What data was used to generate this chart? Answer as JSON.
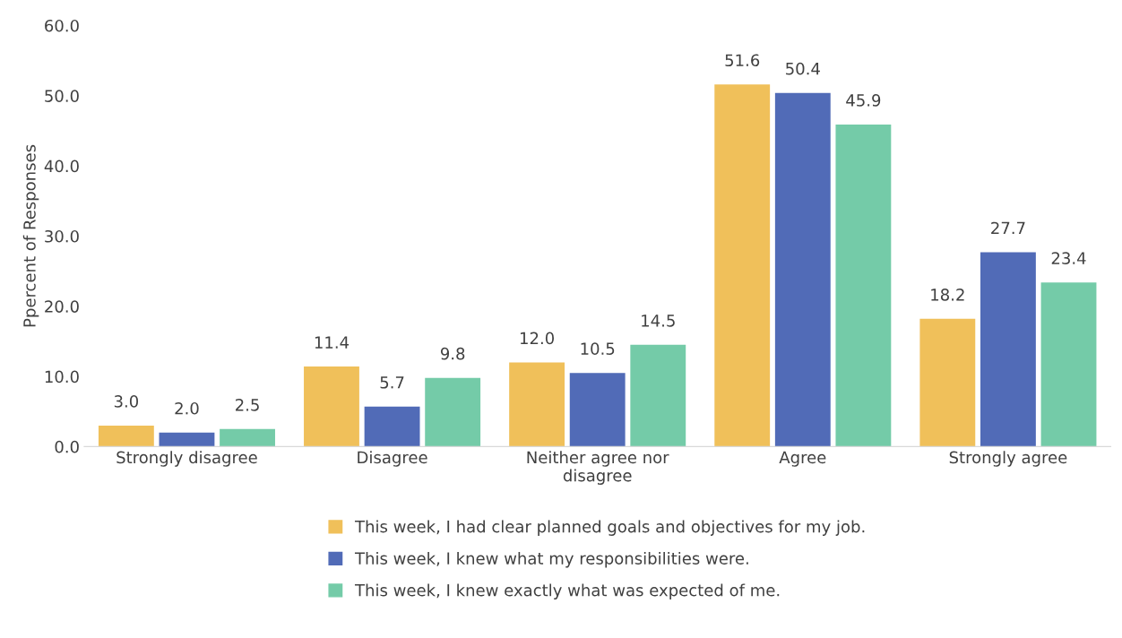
{
  "chart_data": {
    "type": "bar",
    "ylabel": "Ppercent of Responses",
    "categories": [
      "Strongly disagree",
      "Disagree",
      "Neither agree nor\ndisagree",
      "Agree",
      "Strongly agree"
    ],
    "series": [
      {
        "name": "This week, I had clear planned goals and objectives for my job.",
        "color": "#f0c05a",
        "values": [
          3.0,
          11.4,
          12.0,
          51.6,
          18.2
        ],
        "value_labels": [
          "3.0",
          "11.4",
          "12.0",
          "51.6",
          "18.2"
        ]
      },
      {
        "name": "This week, I knew what my responsibilities were.",
        "color": "#516bb7",
        "values": [
          2.0,
          5.7,
          10.5,
          50.4,
          27.7
        ],
        "value_labels": [
          "2.0",
          "5.7",
          "10.5",
          "50.4",
          "27.7"
        ]
      },
      {
        "name": "This week, I knew exactly what was expected of me.",
        "color": "#74cba8",
        "values": [
          2.5,
          9.8,
          14.5,
          45.9,
          23.4
        ],
        "value_labels": [
          "2.5",
          "9.8",
          "14.5",
          "45.9",
          "23.4"
        ]
      }
    ],
    "ylim": [
      0,
      60
    ],
    "yticks": [
      {
        "value": 0,
        "label": "0.0"
      },
      {
        "value": 10,
        "label": "10.0"
      },
      {
        "value": 20,
        "label": "20.0"
      },
      {
        "value": 30,
        "label": "30.0"
      },
      {
        "value": 40,
        "label": "40.0"
      },
      {
        "value": 50,
        "label": "50.0"
      },
      {
        "value": 60,
        "label": "60.0"
      }
    ],
    "grid": false,
    "legend": "bottom"
  }
}
